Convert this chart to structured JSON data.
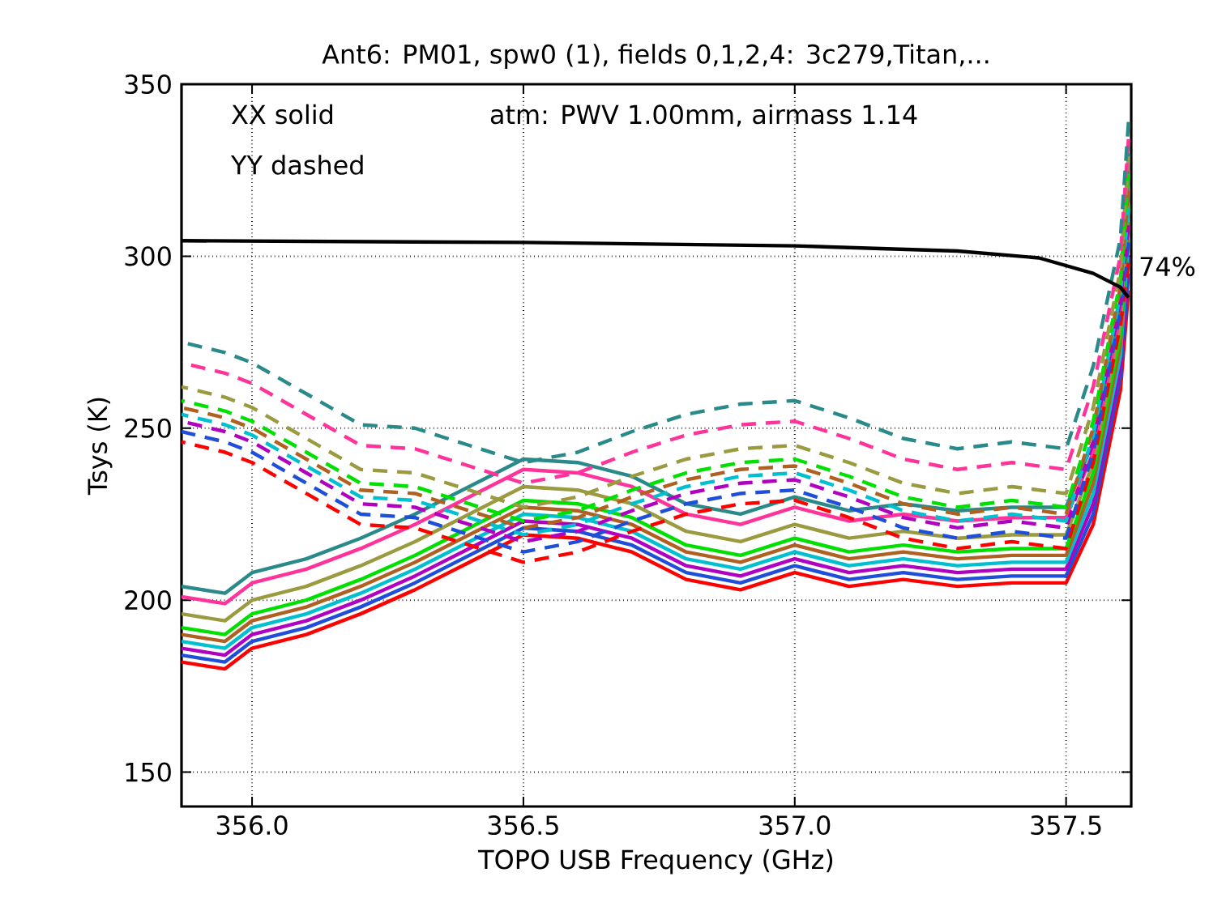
{
  "chart_data": {
    "type": "line",
    "title": "Ant6: PM01,  spw0 (1),  fields 0,1,2,4: 3c279,Titan,...",
    "xlabel": "TOPO USB Frequency (GHz)",
    "ylabel": "Tsys (K)",
    "xlim": [
      355.87,
      357.62
    ],
    "ylim": [
      140,
      350
    ],
    "xticks": [
      {
        "value": 356.0,
        "label": "356.0"
      },
      {
        "value": 356.5,
        "label": "356.5"
      },
      {
        "value": 357.0,
        "label": "357.0"
      },
      {
        "value": 357.5,
        "label": "357.5"
      }
    ],
    "yticks": [
      150,
      200,
      250,
      300,
      350
    ],
    "grid": true,
    "x": [
      355.87,
      355.95,
      356.0,
      356.1,
      356.2,
      356.3,
      356.4,
      356.5,
      356.6,
      356.7,
      356.8,
      356.9,
      357.0,
      357.1,
      357.2,
      357.3,
      357.4,
      357.5,
      357.55,
      357.6,
      357.615
    ],
    "annotations": [
      "XX solid",
      "YY dashed",
      "atm: PWV 1.00mm, airmass 1.14",
      {
        "text": "74%",
        "x": 357.615,
        "y": 297
      }
    ],
    "series": [
      {
        "color": "#ff0000",
        "line_style": "solid",
        "values": [
          182,
          180,
          186,
          190,
          196,
          203,
          211,
          219,
          218,
          214,
          206,
          203,
          208,
          204,
          206,
          204,
          205,
          205,
          222,
          261,
          290
        ]
      },
      {
        "color": "#1f4fd8",
        "line_style": "solid",
        "values": [
          184,
          182,
          188,
          192,
          198,
          205,
          213,
          221,
          220,
          216,
          208,
          205,
          210,
          206,
          208,
          206,
          207,
          207,
          225,
          265,
          295
        ]
      },
      {
        "color": "#b000c0",
        "line_style": "solid",
        "values": [
          186,
          184,
          190,
          194,
          200,
          207,
          215,
          223,
          222,
          218,
          210,
          207,
          212,
          208,
          210,
          208,
          209,
          209,
          228,
          268,
          300
        ]
      },
      {
        "color": "#00c0d0",
        "line_style": "solid",
        "values": [
          188,
          186,
          192,
          196,
          202,
          209,
          217,
          225,
          224,
          220,
          212,
          209,
          214,
          210,
          212,
          210,
          211,
          211,
          231,
          271,
          305
        ]
      },
      {
        "color": "#b06020",
        "line_style": "solid",
        "values": [
          190,
          188,
          194,
          198,
          204,
          211,
          219,
          227,
          226,
          222,
          214,
          211,
          216,
          212,
          214,
          212,
          213,
          213,
          234,
          274,
          310
        ]
      },
      {
        "color": "#00e000",
        "line_style": "solid",
        "values": [
          192,
          190,
          196,
          200,
          206,
          213,
          221,
          229,
          228,
          224,
          216,
          213,
          218,
          214,
          216,
          214,
          215,
          215,
          237,
          277,
          315
        ]
      },
      {
        "color": "#9a9a40",
        "line_style": "solid",
        "values": [
          196,
          194,
          200,
          204,
          210,
          217,
          225,
          233,
          232,
          228,
          220,
          217,
          222,
          218,
          220,
          218,
          219,
          219,
          240,
          280,
          320
        ]
      },
      {
        "color": "#ff3399",
        "line_style": "solid",
        "values": [
          201,
          199,
          205,
          209,
          215,
          222,
          230,
          238,
          237,
          233,
          225,
          222,
          227,
          223,
          225,
          223,
          224,
          224,
          243,
          283,
          325
        ]
      },
      {
        "color": "#2a8a8a",
        "line_style": "solid",
        "values": [
          204,
          202,
          208,
          212,
          218,
          225,
          233,
          241,
          240,
          236,
          228,
          225,
          230,
          226,
          228,
          226,
          227,
          227,
          246,
          286,
          330
        ]
      },
      {
        "color": "#ff0000",
        "line_style": "dashed",
        "values": [
          246,
          243,
          240,
          231,
          222,
          221,
          216,
          211,
          214,
          220,
          225,
          228,
          229,
          224,
          218,
          215,
          217,
          215,
          240,
          280,
          298
        ]
      },
      {
        "color": "#1f4fd8",
        "line_style": "dashed",
        "values": [
          249,
          246,
          243,
          234,
          225,
          224,
          219,
          214,
          217,
          223,
          228,
          231,
          232,
          227,
          221,
          218,
          220,
          218,
          243,
          284,
          304
        ]
      },
      {
        "color": "#b000c0",
        "line_style": "dashed",
        "values": [
          252,
          249,
          246,
          237,
          228,
          227,
          222,
          217,
          220,
          226,
          231,
          234,
          235,
          230,
          224,
          221,
          223,
          221,
          246,
          287,
          309
        ]
      },
      {
        "color": "#00c0d0",
        "line_style": "dashed",
        "values": [
          254,
          251,
          248,
          239,
          230,
          229,
          224,
          219,
          222,
          228,
          233,
          236,
          237,
          232,
          226,
          223,
          225,
          223,
          248,
          289,
          314
        ]
      },
      {
        "color": "#b06020",
        "line_style": "dashed",
        "values": [
          256,
          253,
          250,
          241,
          232,
          231,
          226,
          221,
          224,
          230,
          235,
          238,
          239,
          234,
          228,
          225,
          227,
          225,
          250,
          291,
          319
        ]
      },
      {
        "color": "#00e000",
        "line_style": "dashed",
        "values": [
          258,
          255,
          252,
          243,
          234,
          233,
          228,
          223,
          226,
          232,
          237,
          240,
          241,
          236,
          230,
          227,
          229,
          227,
          252,
          293,
          324
        ]
      },
      {
        "color": "#9a9a40",
        "line_style": "dashed",
        "values": [
          262,
          259,
          256,
          247,
          238,
          237,
          232,
          227,
          230,
          236,
          241,
          244,
          245,
          240,
          234,
          231,
          233,
          231,
          256,
          296,
          329
        ]
      },
      {
        "color": "#ff3399",
        "line_style": "dashed",
        "values": [
          269,
          266,
          263,
          254,
          245,
          244,
          239,
          234,
          237,
          243,
          248,
          251,
          252,
          247,
          241,
          238,
          240,
          238,
          262,
          300,
          334
        ]
      },
      {
        "color": "#2a8a8a",
        "line_style": "dashed",
        "values": [
          275,
          272,
          269,
          260,
          251,
          250,
          245,
          240,
          243,
          249,
          254,
          257,
          258,
          253,
          247,
          244,
          246,
          244,
          268,
          305,
          339
        ]
      },
      {
        "color": "#000000",
        "line_style": "solid",
        "x": [
          355.87,
          356.5,
          357.0,
          357.3,
          357.45,
          357.55,
          357.6,
          357.615
        ],
        "values": [
          304.5,
          304,
          303,
          301.5,
          299.5,
          295,
          291,
          288
        ]
      }
    ]
  }
}
